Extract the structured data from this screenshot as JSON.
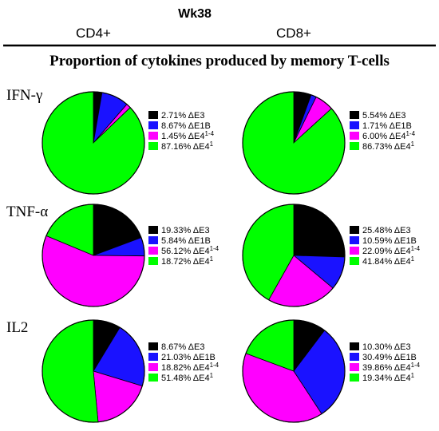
{
  "header": {
    "week": "Wk38",
    "columns": [
      "CD4+",
      "CD8+"
    ]
  },
  "chart_title": "Proportion of cytokines produced by memory T-cells",
  "legend_categories": [
    {
      "base": "ΔE3",
      "sup": ""
    },
    {
      "base": "ΔE1B",
      "sup": ""
    },
    {
      "base": "ΔE4",
      "sup": "1-4"
    },
    {
      "base": "ΔE4",
      "sup": "1"
    }
  ],
  "colors": [
    "#000000",
    "#1a12ff",
    "#ff00ff",
    "#00ff00"
  ],
  "chart_data": [
    {
      "type": "pie",
      "row": "IFN-γ",
      "column": "CD4+",
      "values": [
        2.71,
        8.67,
        1.45,
        87.16
      ],
      "labels": [
        "2.71%",
        "8.67%",
        "1.45%",
        "87.16%"
      ]
    },
    {
      "type": "pie",
      "row": "IFN-γ",
      "column": "CD8+",
      "values": [
        5.54,
        1.71,
        6.0,
        86.73
      ],
      "labels": [
        "5.54%",
        "1.71%",
        "6.00%",
        "86.73%"
      ]
    },
    {
      "type": "pie",
      "row": "TNF-α",
      "column": "CD4+",
      "values": [
        19.33,
        5.84,
        56.12,
        18.72
      ],
      "labels": [
        "19.33%",
        "5.84%",
        "56.12%",
        "18.72%"
      ]
    },
    {
      "type": "pie",
      "row": "TNF-α",
      "column": "CD8+",
      "values": [
        25.48,
        10.59,
        22.09,
        41.84
      ],
      "labels": [
        "25.48%",
        "10.59%",
        "22.09%",
        "41.84%"
      ]
    },
    {
      "type": "pie",
      "row": "IL2",
      "column": "CD4+",
      "values": [
        8.67,
        21.03,
        18.82,
        51.48
      ],
      "labels": [
        "8.67%",
        "21.03%",
        "18.82%",
        "51.48%"
      ]
    },
    {
      "type": "pie",
      "row": "IL2",
      "column": "CD8+",
      "values": [
        10.3,
        30.49,
        39.86,
        19.34
      ],
      "labels": [
        "10.30%",
        "30.49%",
        "39.86%",
        "19.34%"
      ]
    }
  ]
}
